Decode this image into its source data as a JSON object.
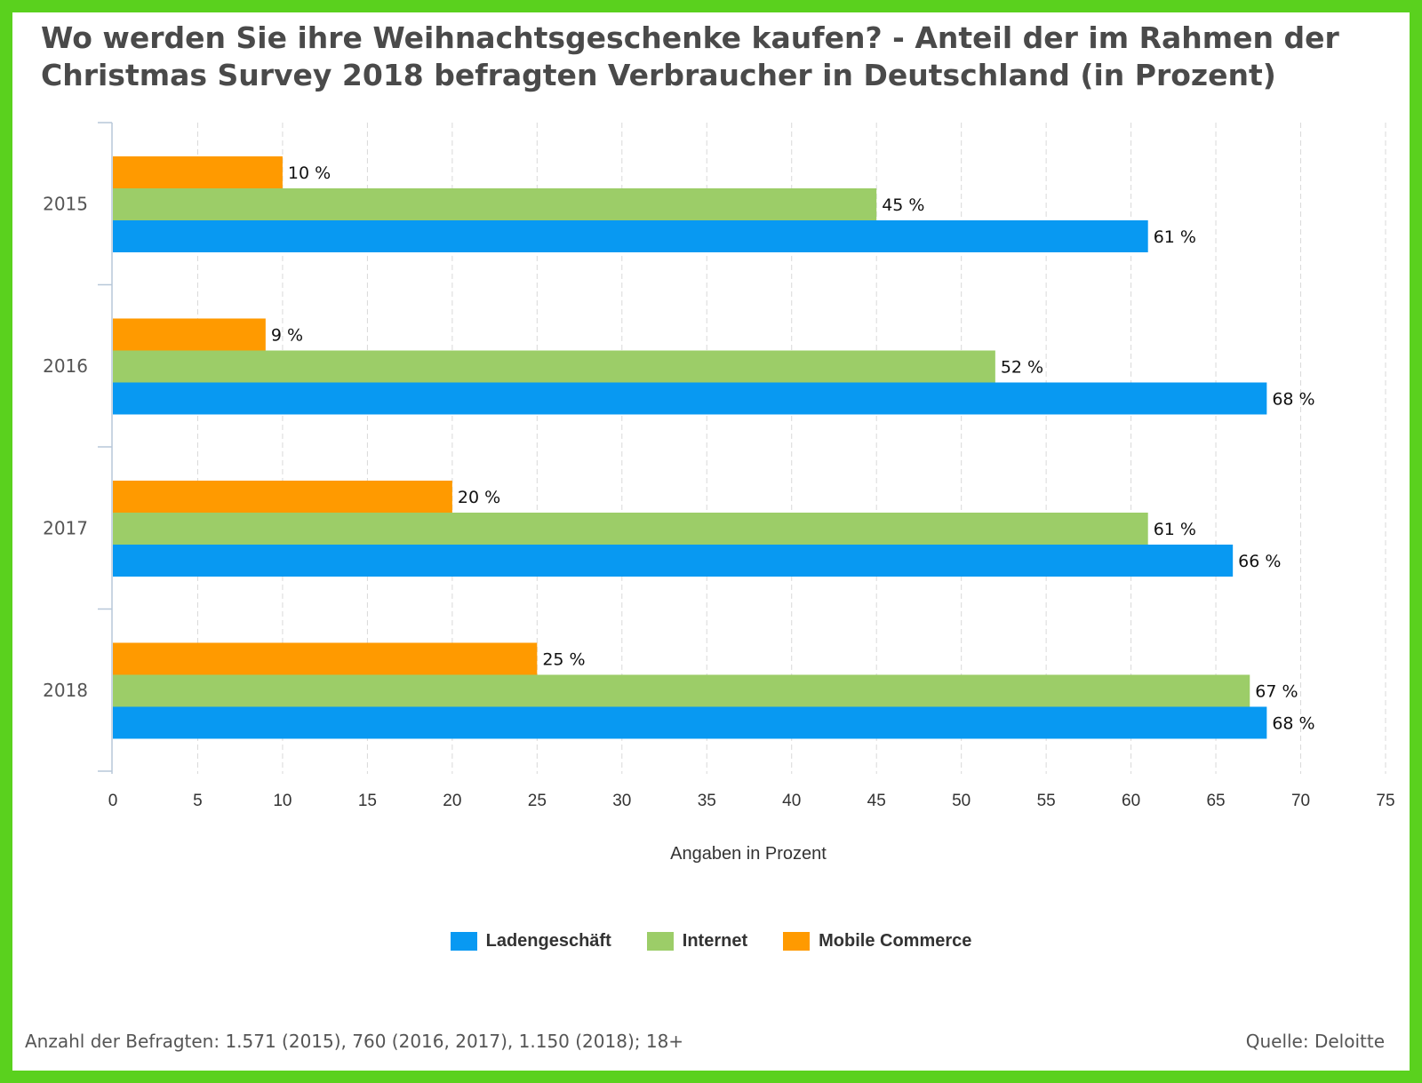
{
  "colors": {
    "frame": "#5ad11e",
    "ladengeschaeft": "#0899f2",
    "internet": "#9ccd68",
    "mobile": "#ff9a00"
  },
  "chart_data": {
    "type": "bar",
    "orientation": "horizontal",
    "title": "Wo werden Sie ihre Weihnachtsgeschenke kaufen? - Anteil der im Rahmen der Christmas Survey 2018 befragten Verbraucher in Deutschland (in Prozent)",
    "xlabel": "Angaben in Prozent",
    "ylabel": "",
    "xlim": [
      0,
      75
    ],
    "xticks": [
      0,
      5,
      10,
      15,
      20,
      25,
      30,
      35,
      40,
      45,
      50,
      55,
      60,
      65,
      70,
      75
    ],
    "categories": [
      "2015",
      "2016",
      "2017",
      "2018"
    ],
    "value_suffix": " %",
    "grid": true,
    "legend_position": "bottom-center",
    "series": [
      {
        "name": "Mobile Commerce",
        "color": "#ff9a00",
        "values": [
          10,
          9,
          20,
          25
        ]
      },
      {
        "name": "Internet",
        "color": "#9ccd68",
        "values": [
          45,
          52,
          61,
          67
        ]
      },
      {
        "name": "Ladengeschäft",
        "color": "#0899f2",
        "values": [
          61,
          68,
          66,
          68
        ]
      }
    ],
    "legend_order": [
      "Ladengeschäft",
      "Internet",
      "Mobile Commerce"
    ]
  },
  "footer": {
    "note": "Anzahl der Befragten: 1.571 (2015), 760 (2016, 2017), 1.150 (2018); 18+",
    "source": "Quelle: Deloitte"
  }
}
